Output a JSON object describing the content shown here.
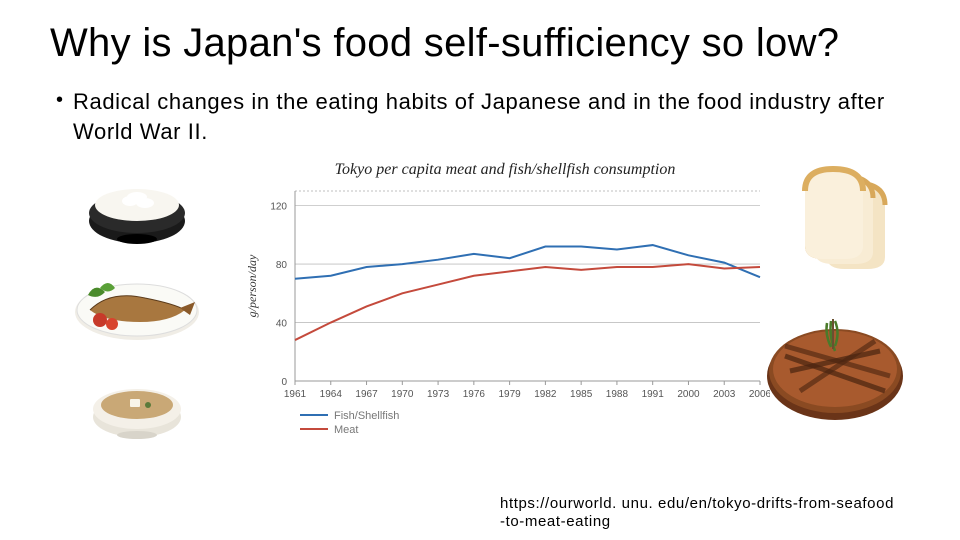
{
  "title": "Why is Japan's food self-sufficiency so low?",
  "bullet": "Radical changes in the eating habits of Japanese and in the food industry after World War II.",
  "source_line1": "https://ourworld. unu. edu/en/tokyo-drifts-from-seafood",
  "source_line2": "-to-meat-eating",
  "chart": {
    "title": "Tokyo per capita meat and fish/shellfish consumption",
    "ylabel": "g/person/day",
    "xticks": [
      "1961",
      "1964",
      "1967",
      "1970",
      "1973",
      "1976",
      "1979",
      "1982",
      "1985",
      "1988",
      "1991",
      "2000",
      "2003",
      "2006"
    ],
    "yticks": [
      0,
      40,
      80,
      120
    ],
    "ylim": [
      0,
      130
    ],
    "series": [
      {
        "name": "Fish/Shellfish",
        "color": "#2f6fb3",
        "values": [
          70,
          72,
          78,
          80,
          83,
          87,
          84,
          92,
          92,
          90,
          93,
          86,
          81,
          71
        ]
      },
      {
        "name": "Meat",
        "color": "#c44a3c",
        "values": [
          28,
          40,
          51,
          60,
          66,
          72,
          75,
          78,
          76,
          78,
          78,
          80,
          77,
          78
        ]
      }
    ],
    "grid_color": "#bfbfbf",
    "axis_color": "#999999",
    "background": "#ffffff",
    "tick_fontsize": 10,
    "title_fontsize": 16,
    "line_width": 2
  },
  "left_foods": [
    {
      "name": "rice-bowl",
      "description": "white rice in dark bowl"
    },
    {
      "name": "grilled-fish",
      "description": "grilled fish with vegetables"
    },
    {
      "name": "miso-soup",
      "description": "miso soup bowl"
    }
  ],
  "right_foods": [
    {
      "name": "bread-slices",
      "description": "sliced bread loaf"
    },
    {
      "name": "grilled-steak",
      "description": "grilled beef steak with rosemary"
    }
  ]
}
